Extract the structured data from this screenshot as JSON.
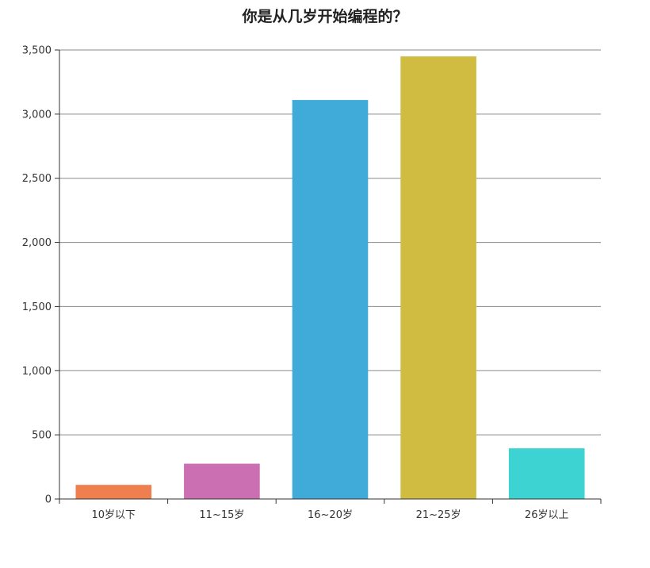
{
  "chart_data": {
    "type": "bar",
    "title": "你是从几岁开始编程的？",
    "categories": [
      "10岁以下",
      "11~15岁",
      "16~20岁",
      "21~25岁",
      "26岁以上"
    ],
    "values": [
      110,
      275,
      3110,
      3450,
      395
    ],
    "colors": [
      "#ef7f4f",
      "#cb6fb2",
      "#40aad8",
      "#d1bc42",
      "#3ed3d3"
    ],
    "ylim": [
      0,
      3500
    ],
    "yticks": [
      0,
      500,
      1000,
      1500,
      2000,
      2500,
      3000,
      3500
    ],
    "ytick_labels": [
      "0",
      "500",
      "1,000",
      "1,500",
      "2,000",
      "2,500",
      "3,000",
      "3,500"
    ],
    "xlabel": "",
    "ylabel": "",
    "grid": true,
    "legend": "none"
  }
}
